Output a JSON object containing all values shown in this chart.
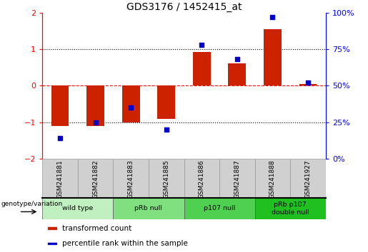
{
  "title": "GDS3176 / 1452415_at",
  "samples": [
    "GSM241881",
    "GSM241882",
    "GSM241883",
    "GSM241885",
    "GSM241886",
    "GSM241887",
    "GSM241888",
    "GSM241927"
  ],
  "transformed_count": [
    -1.1,
    -1.1,
    -1.0,
    -0.9,
    0.92,
    0.62,
    1.55,
    0.05
  ],
  "percentile_rank": [
    14,
    25,
    35,
    20,
    78,
    68,
    97,
    52
  ],
  "ylim_left": [
    -2,
    2
  ],
  "ylim_right": [
    0,
    100
  ],
  "yticks_left": [
    -2,
    -1,
    0,
    1,
    2
  ],
  "yticks_right": [
    0,
    25,
    50,
    75,
    100
  ],
  "ytick_labels_right": [
    "0%",
    "25%",
    "50%",
    "75%",
    "100%"
  ],
  "hlines_dotted": [
    -1,
    1
  ],
  "hline_dashed_color": "red",
  "groups": [
    {
      "label": "wild type",
      "count": 2,
      "color": "#c0f0c0"
    },
    {
      "label": "pRb null",
      "count": 2,
      "color": "#80e080"
    },
    {
      "label": "p107 null",
      "count": 2,
      "color": "#50d050"
    },
    {
      "label": "pRb p107\ndouble null",
      "count": 2,
      "color": "#20c020"
    }
  ],
  "bar_color": "#cc2200",
  "dot_color": "#0000cc",
  "legend_items": [
    {
      "label": "transformed count",
      "color": "#cc2200"
    },
    {
      "label": "percentile rank within the sample",
      "color": "#0000cc"
    }
  ],
  "genotype_label": "genotype/variation",
  "sample_box_color": "#d0d0d0",
  "sample_box_edge": "#999999"
}
